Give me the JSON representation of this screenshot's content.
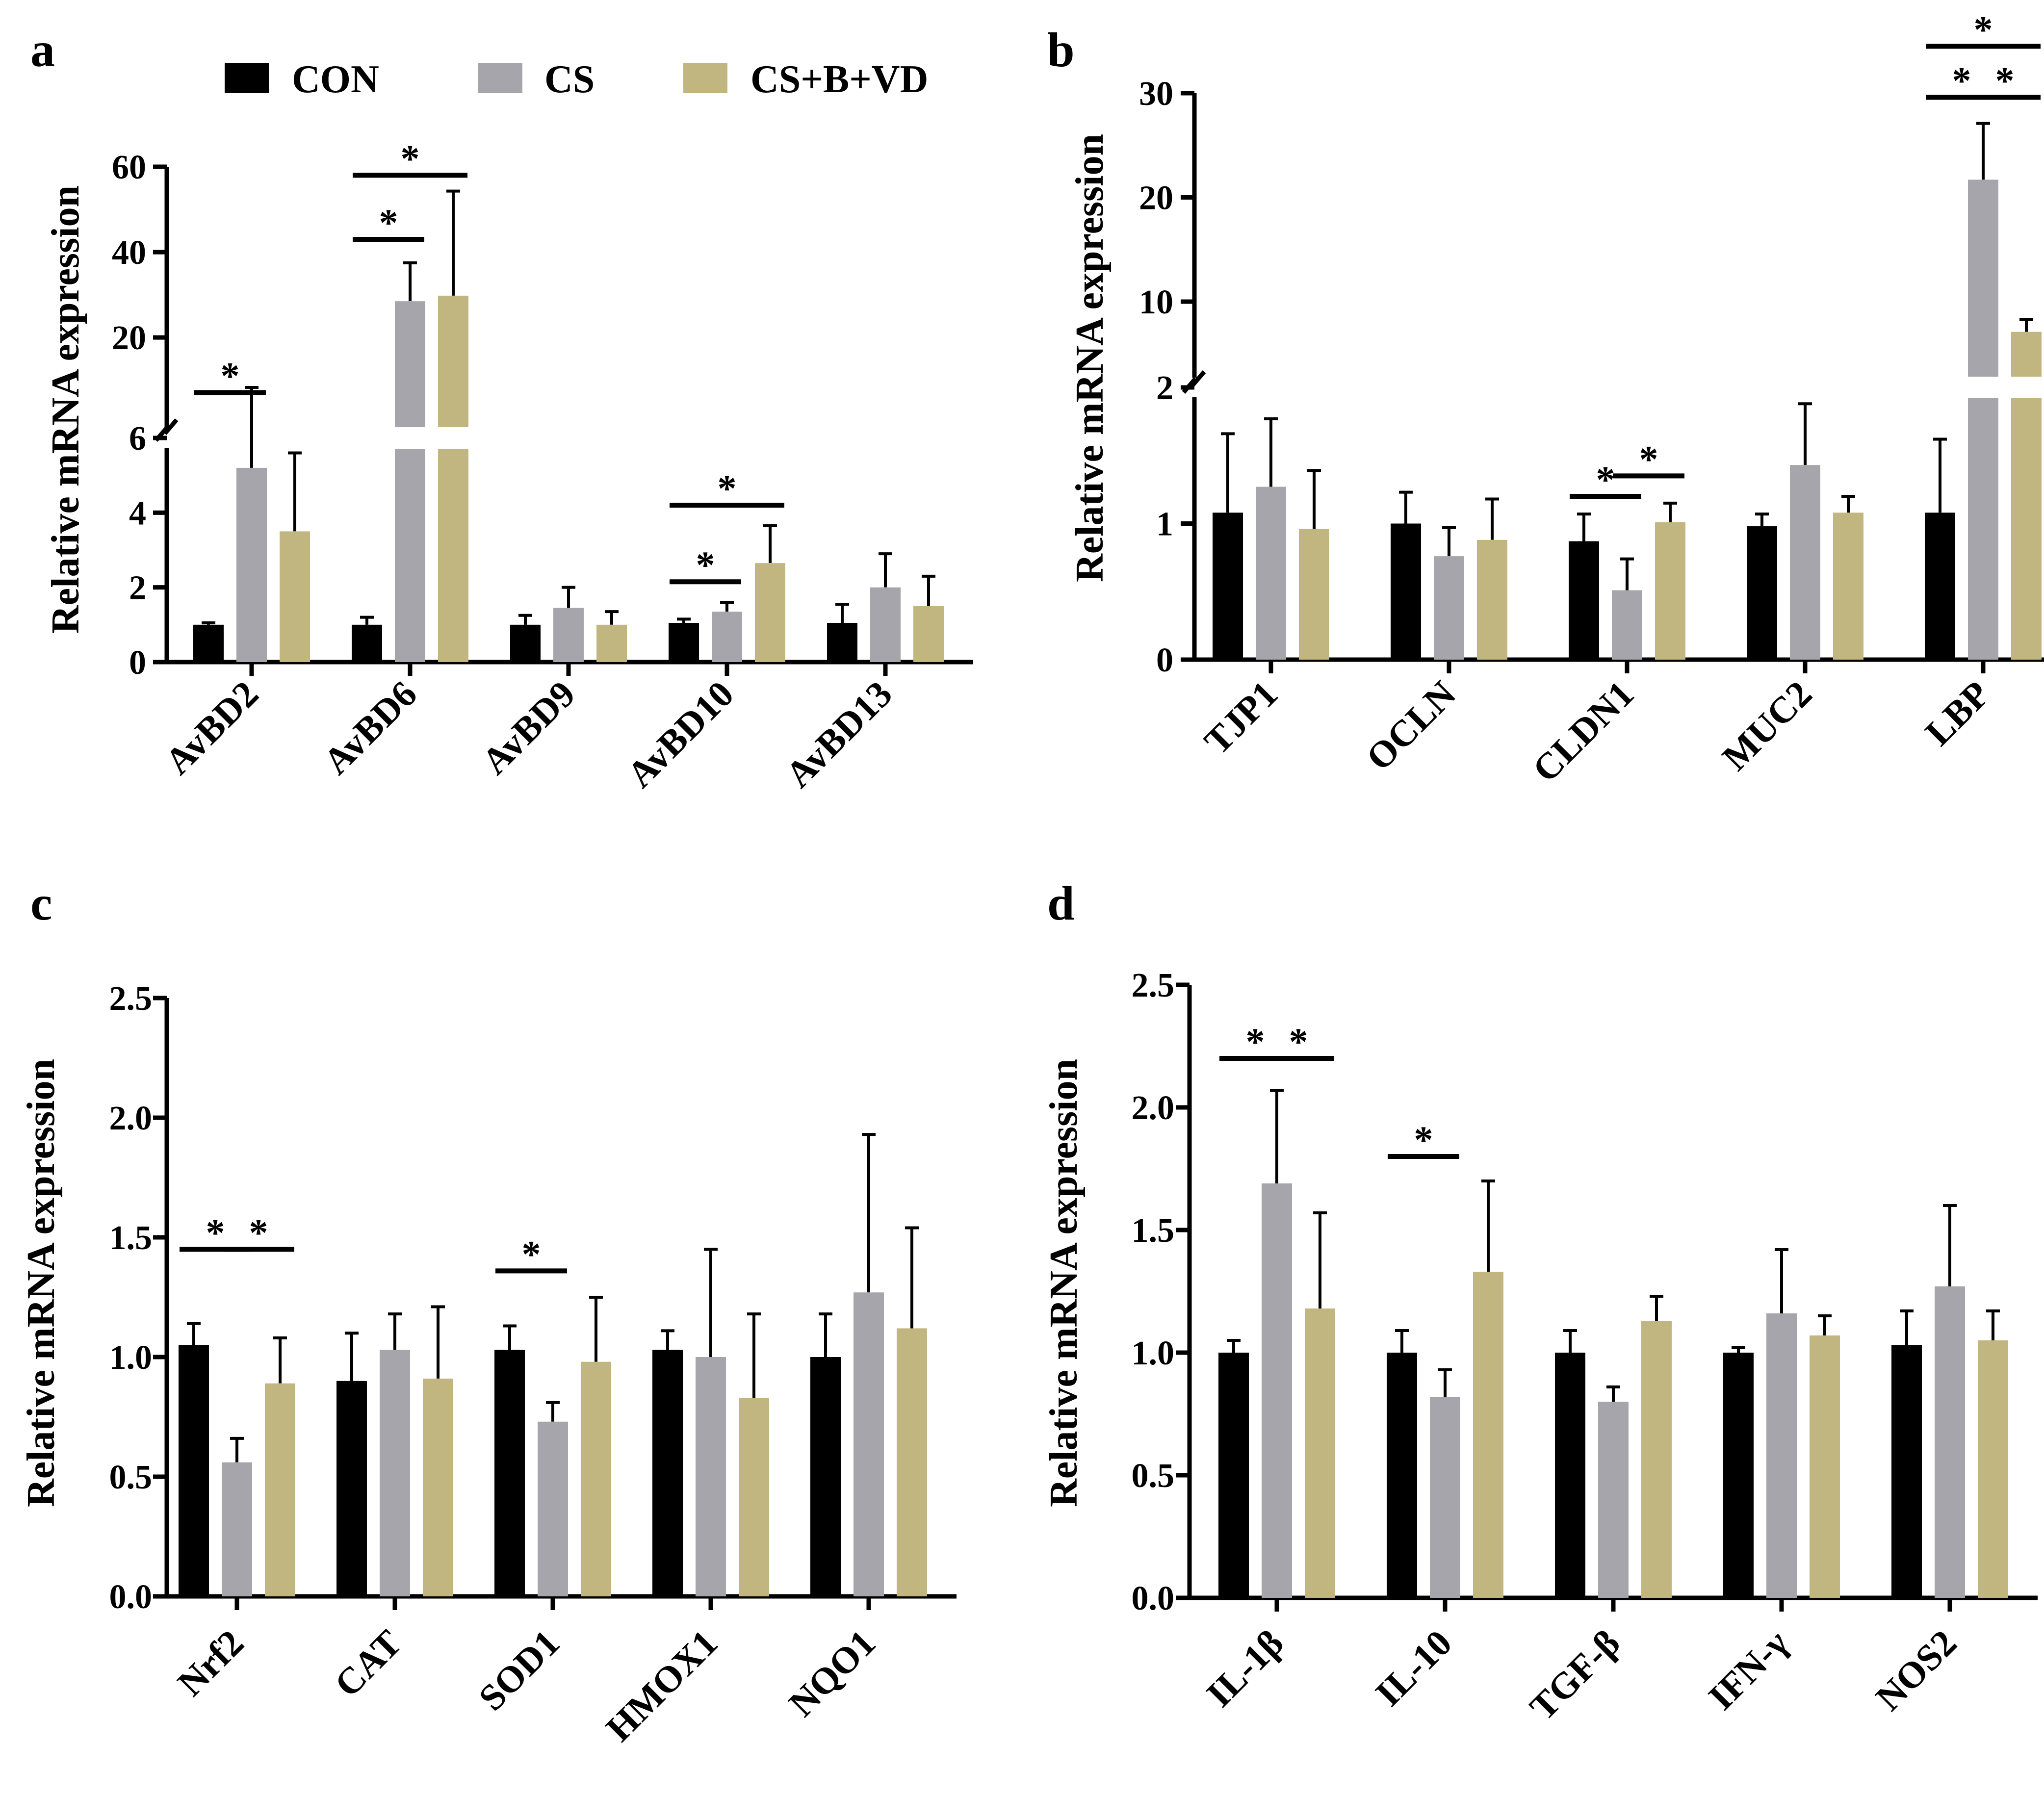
{
  "legend": {
    "items": [
      {
        "label": "CON",
        "color": "#000000"
      },
      {
        "label": "CS",
        "color": "#a6a5ab"
      },
      {
        "label": "CS+B+VD",
        "color": "#c2b680"
      }
    ]
  },
  "chart_data": [
    {
      "panel": "a",
      "type": "bar",
      "ylabel": "Relative mRNA expression",
      "broken_axis": {
        "lower": [
          0,
          6
        ],
        "upper": [
          6,
          60
        ],
        "lower_ticks": [
          0,
          2,
          4,
          6
        ],
        "upper_ticks": [
          20,
          40,
          60
        ]
      },
      "categories": [
        "AvBD2",
        "AvBD6",
        "AvBD9",
        "AvBD10",
        "AvBD13"
      ],
      "series": [
        {
          "name": "CON",
          "values": [
            1.0,
            1.0,
            1.0,
            1.05,
            1.05
          ],
          "errors": [
            0.05,
            0.2,
            0.25,
            0.1,
            0.5
          ]
        },
        {
          "name": "CS",
          "values": [
            5.2,
            28.5,
            1.45,
            1.35,
            2.0
          ],
          "errors": [
            3.1,
            9.0,
            0.55,
            0.25,
            0.9
          ]
        },
        {
          "name": "CS+B+VD",
          "values": [
            3.5,
            29.8,
            1.0,
            2.65,
            1.5
          ],
          "errors": [
            2.1,
            24.5,
            0.35,
            1.0,
            0.8
          ]
        }
      ],
      "significance": [
        {
          "category": 0,
          "from": 0,
          "to": 1,
          "y": 7.1,
          "label": "*"
        },
        {
          "category": 1,
          "from": 0,
          "to": 1,
          "y": 43,
          "label": "*"
        },
        {
          "category": 1,
          "from": 0,
          "to": 2,
          "y": 58,
          "label": "*"
        },
        {
          "category": 3,
          "from": 0,
          "to": 1,
          "y": 2.15,
          "label": "*"
        },
        {
          "category": 3,
          "from": 0,
          "to": 2,
          "y": 4.2,
          "label": "*"
        }
      ]
    },
    {
      "panel": "b",
      "type": "bar",
      "ylabel": "Relative mRNA expression",
      "broken_axis": {
        "lower": [
          0,
          2
        ],
        "upper": [
          2,
          30
        ],
        "lower_ticks": [
          0,
          1,
          2
        ],
        "upper_ticks": [
          10,
          20,
          30
        ]
      },
      "categories": [
        "TJP1",
        "OCLN",
        "CLDN1",
        "MUC2",
        "LBP"
      ],
      "series": [
        {
          "name": "CON",
          "values": [
            1.08,
            1.0,
            0.87,
            0.98,
            1.08
          ],
          "errors": [
            0.58,
            0.23,
            0.2,
            0.09,
            0.54
          ]
        },
        {
          "name": "CS",
          "values": [
            1.27,
            0.76,
            0.51,
            1.43,
            21.7
          ],
          "errors": [
            0.5,
            0.21,
            0.23,
            0.45,
            5.4
          ]
        },
        {
          "name": "CS+B+VD",
          "values": [
            0.96,
            0.88,
            1.01,
            1.08,
            7.1
          ],
          "errors": [
            0.43,
            0.3,
            0.14,
            0.12,
            1.2
          ]
        }
      ],
      "significance": [
        {
          "category": 2,
          "from": 0,
          "to": 1,
          "y": 1.2,
          "label": "*"
        },
        {
          "category": 2,
          "from": 1,
          "to": 2,
          "y": 1.35,
          "label": "*"
        },
        {
          "category": 4,
          "from": 0,
          "to": 1,
          "y": 29.6,
          "label": "*"
        },
        {
          "category": 4,
          "from": 1,
          "to": 2,
          "y": 29.6,
          "label": "*"
        },
        {
          "category": 4,
          "from": 0,
          "to": 2,
          "y": 34.5,
          "label": "*"
        }
      ]
    },
    {
      "panel": "c",
      "type": "bar",
      "ylabel": "Relative mRNA expression",
      "ylim": [
        0,
        2.5
      ],
      "ticks": [
        "0.0",
        "0.5",
        "1.0",
        "1.5",
        "2.0",
        "2.5"
      ],
      "categories": [
        "Nrf2",
        "CAT",
        "SOD1",
        "HMOX1",
        "NQO1"
      ],
      "series": [
        {
          "name": "CON",
          "values": [
            1.05,
            0.9,
            1.03,
            1.03,
            1.0
          ],
          "errors": [
            0.09,
            0.2,
            0.1,
            0.08,
            0.18
          ]
        },
        {
          "name": "CS",
          "values": [
            0.56,
            1.03,
            0.73,
            1.0,
            1.27
          ],
          "errors": [
            0.1,
            0.15,
            0.08,
            0.45,
            0.66
          ]
        },
        {
          "name": "CS+B+VD",
          "values": [
            0.89,
            0.91,
            0.98,
            0.83,
            1.12
          ],
          "errors": [
            0.19,
            0.3,
            0.27,
            0.35,
            0.42
          ]
        }
      ],
      "significance": [
        {
          "category": 0,
          "from": 0,
          "to": 1,
          "y": 1.45,
          "label": "*"
        },
        {
          "category": 0,
          "from": 1,
          "to": 2,
          "y": 1.45,
          "label": "*"
        },
        {
          "category": 2,
          "from": 0,
          "to": 1,
          "y": 1.36,
          "label": "*"
        }
      ]
    },
    {
      "panel": "d",
      "type": "bar",
      "ylabel": "Relative mRNA expression",
      "ylim": [
        0,
        2.5
      ],
      "ticks": [
        "0.0",
        "0.5",
        "1.0",
        "1.5",
        "2.0",
        "2.5"
      ],
      "categories": [
        "IL-1β",
        "IL-10",
        "TGF-β",
        "IFN-γ",
        "NOS2"
      ],
      "series": [
        {
          "name": "CON",
          "values": [
            1.0,
            1.0,
            1.0,
            1.0,
            1.03
          ],
          "errors": [
            0.05,
            0.09,
            0.09,
            0.02,
            0.14
          ]
        },
        {
          "name": "CS",
          "values": [
            1.69,
            0.82,
            0.8,
            1.16,
            1.27
          ],
          "errors": [
            0.38,
            0.11,
            0.06,
            0.26,
            0.33
          ]
        },
        {
          "name": "CS+B+VD",
          "values": [
            1.18,
            1.33,
            1.13,
            1.07,
            1.05
          ],
          "errors": [
            0.39,
            0.37,
            0.1,
            0.08,
            0.12
          ]
        }
      ],
      "significance": [
        {
          "category": 0,
          "from": 0,
          "to": 1,
          "y": 2.2,
          "label": "*"
        },
        {
          "category": 0,
          "from": 1,
          "to": 2,
          "y": 2.2,
          "label": "*"
        },
        {
          "category": 1,
          "from": 0,
          "to": 1,
          "y": 1.8,
          "label": "*"
        }
      ]
    }
  ]
}
